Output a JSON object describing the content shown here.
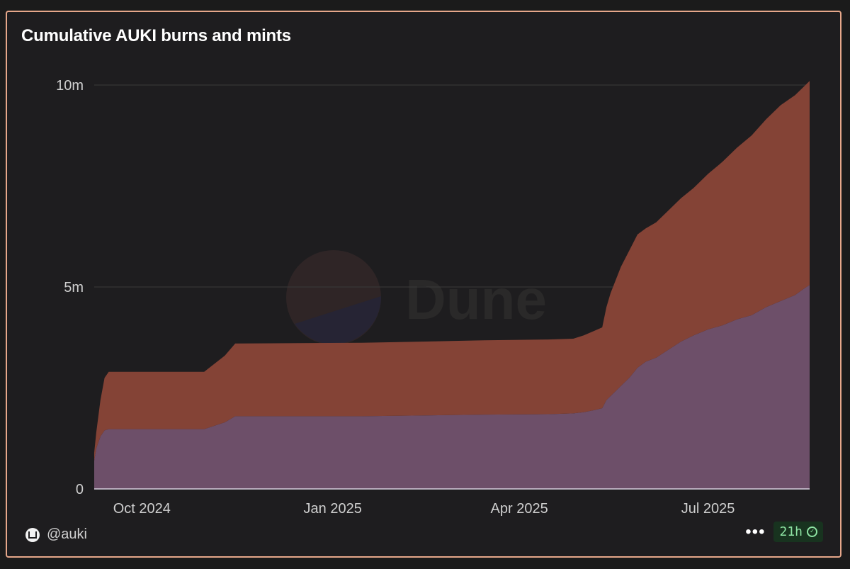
{
  "chart_data": {
    "type": "area",
    "stacked": true,
    "title": "Cumulative AUKI burns and mints",
    "xlabel": "",
    "ylabel": "",
    "ylim": [
      0,
      10000000
    ],
    "y_ticks": [
      {
        "value": 0,
        "label": "0"
      },
      {
        "value": 5000000,
        "label": "5m"
      },
      {
        "value": 10000000,
        "label": "10m"
      }
    ],
    "x_range": [
      "2024-09-08",
      "2025-08-19"
    ],
    "x_ticks": [
      {
        "date": "2024-10-01",
        "label": "Oct 2024"
      },
      {
        "date": "2025-01-01",
        "label": "Jan 2025"
      },
      {
        "date": "2025-04-01",
        "label": "Apr 2025"
      },
      {
        "date": "2025-07-01",
        "label": "Jul 2025"
      }
    ],
    "grid": true,
    "legend": "none",
    "x": [
      "2024-09-08",
      "2024-09-09",
      "2024-09-11",
      "2024-09-13",
      "2024-09-15",
      "2024-10-31",
      "2024-11-10",
      "2024-11-15",
      "2024-12-15",
      "2025-01-15",
      "2025-02-15",
      "2025-03-15",
      "2025-04-15",
      "2025-04-27",
      "2025-05-02",
      "2025-05-07",
      "2025-05-11",
      "2025-05-13",
      "2025-05-15",
      "2025-05-20",
      "2025-05-24",
      "2025-05-28",
      "2025-06-01",
      "2025-06-06",
      "2025-06-12",
      "2025-06-18",
      "2025-06-24",
      "2025-07-01",
      "2025-07-08",
      "2025-07-15",
      "2025-07-22",
      "2025-07-29",
      "2025-08-05",
      "2025-08-12",
      "2025-08-16",
      "2025-08-19"
    ],
    "series": [
      {
        "values": [
          700000,
          1000000,
          1300000,
          1450000,
          1480000,
          1480000,
          1650000,
          1800000,
          1800000,
          1800000,
          1820000,
          1840000,
          1850000,
          1870000,
          1900000,
          1950000,
          2000000,
          2200000,
          2300000,
          2550000,
          2750000,
          3000000,
          3150000,
          3250000,
          3450000,
          3650000,
          3800000,
          3950000,
          4050000,
          4200000,
          4300000,
          4500000,
          4650000,
          4800000,
          4950000,
          5050000
        ]
      },
      {
        "values": [
          200000,
          400000,
          900000,
          1300000,
          1420000,
          1420000,
          1650000,
          1800000,
          1810000,
          1820000,
          1830000,
          1840000,
          1850000,
          1850000,
          1900000,
          1960000,
          2000000,
          2300000,
          2550000,
          2950000,
          3150000,
          3300000,
          3300000,
          3350000,
          3450000,
          3550000,
          3650000,
          3850000,
          4050000,
          4250000,
          4450000,
          4650000,
          4850000,
          4950000,
          5000000,
          5050000
        ]
      }
    ],
    "colors": [
      "#6d4f69",
      "#844336"
    ]
  },
  "footer": {
    "handle": "@auki",
    "more_label": "•••",
    "refresh_label": "21h"
  },
  "watermark": {
    "text": "Dune"
  }
}
